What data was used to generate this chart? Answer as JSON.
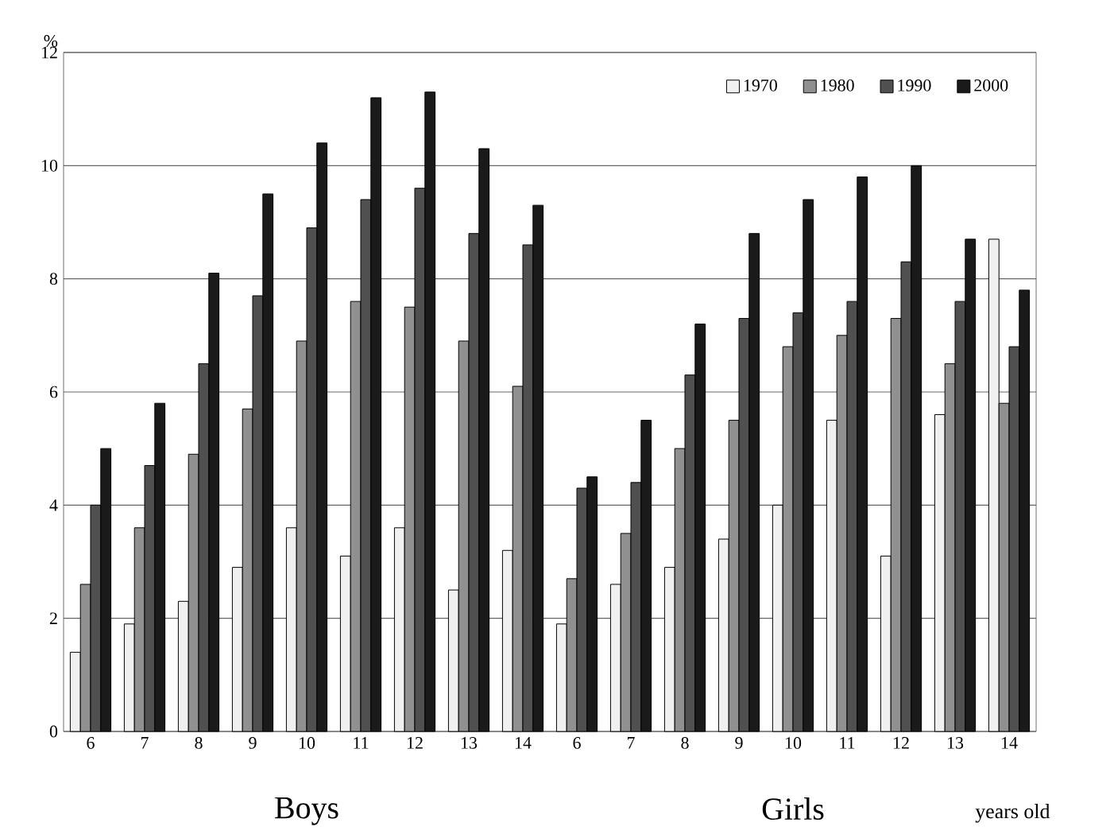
{
  "chart_data": {
    "type": "bar",
    "ylabel": "%",
    "xlabel": "years old",
    "annotations": [
      "Boys",
      "Girls"
    ],
    "categories": [
      "6",
      "7",
      "8",
      "9",
      "10",
      "11",
      "12",
      "13",
      "14",
      "6",
      "7",
      "8",
      "9",
      "10",
      "11",
      "12",
      "13",
      "14"
    ],
    "series": [
      {
        "name": "1970",
        "color": "#f0f0f0",
        "values": [
          1.4,
          1.9,
          2.3,
          2.9,
          3.6,
          3.1,
          3.6,
          2.5,
          3.2,
          1.9,
          2.6,
          2.9,
          3.4,
          4.0,
          5.5,
          3.1,
          5.6,
          8.7
        ]
      },
      {
        "name": "1980",
        "color": "#909090",
        "values": [
          2.6,
          3.6,
          4.9,
          5.7,
          6.9,
          7.6,
          7.5,
          6.9,
          6.1,
          2.7,
          3.5,
          5.0,
          5.5,
          6.8,
          7.0,
          7.3,
          6.5,
          5.8
        ]
      },
      {
        "name": "1990",
        "color": "#505050",
        "values": [
          4.0,
          4.7,
          6.5,
          7.7,
          8.9,
          9.4,
          9.6,
          8.8,
          8.6,
          4.3,
          4.4,
          6.3,
          7.3,
          7.4,
          7.6,
          8.3,
          7.6,
          6.8
        ]
      },
      {
        "name": "2000",
        "color": "#1a1a1a",
        "values": [
          5.0,
          5.8,
          8.1,
          9.5,
          10.4,
          11.2,
          11.3,
          10.3,
          9.3,
          4.5,
          5.5,
          7.2,
          8.8,
          9.4,
          9.8,
          10.0,
          8.7,
          7.8
        ]
      }
    ],
    "ylim": [
      0,
      12
    ],
    "yticks": [
      0,
      2,
      4,
      6,
      8,
      10,
      12
    ],
    "grid": "y",
    "legend": "top right"
  }
}
